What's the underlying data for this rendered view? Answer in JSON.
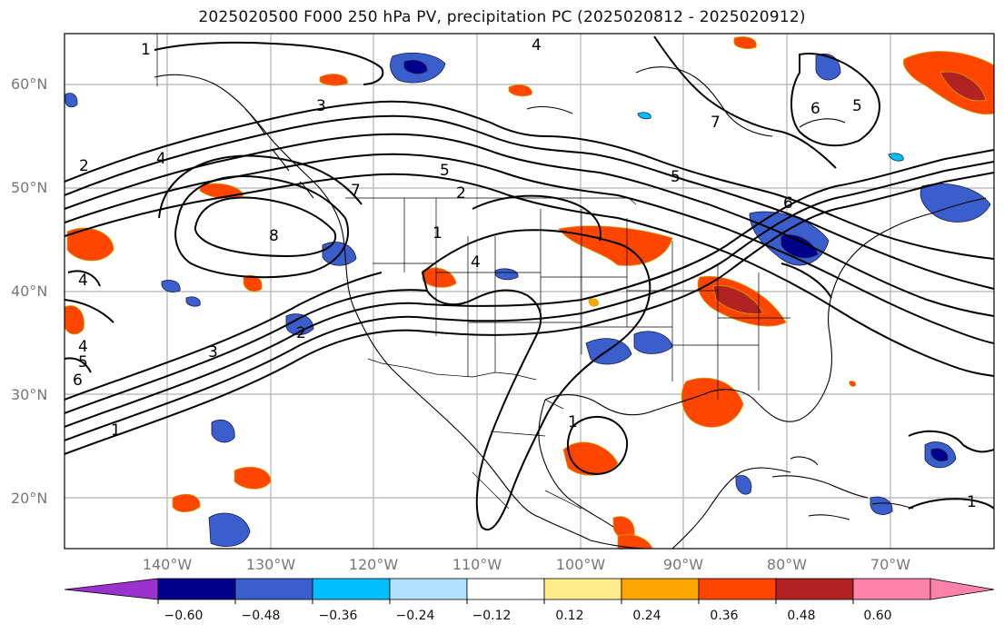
{
  "title": "2025020500 F000 250 hPa PV, precipitation PC (2025020812 - 2025020912)",
  "lat_labels": [
    "60°N",
    "50°N",
    "40°N",
    "30°N",
    "20°N"
  ],
  "lon_labels": [
    "140°W",
    "130°W",
    "120°W",
    "110°W",
    "100°W",
    "90°W",
    "80°W",
    "70°W"
  ],
  "contour_labels": [
    "1",
    "3",
    "2",
    "4",
    "5",
    "7",
    "8",
    "2",
    "1",
    "4",
    "5",
    "6",
    "5",
    "7",
    "6",
    "4",
    "3",
    "4",
    "5",
    "6",
    "1",
    "1",
    "1",
    "2",
    "4"
  ],
  "colorbar": {
    "ticks": [
      "−0.60",
      "−0.48",
      "−0.36",
      "−0.24",
      "−0.12",
      "0.12",
      "0.24",
      "0.36",
      "0.48",
      "0.60"
    ],
    "colors": [
      "#9a32cd",
      "#00008b",
      "#3a5fcd",
      "#00bfff",
      "#b0e2ff",
      "#ffffff",
      "#ffec8b",
      "#ffa500",
      "#ff4500",
      "#b22222",
      "#ff82ab"
    ]
  }
}
